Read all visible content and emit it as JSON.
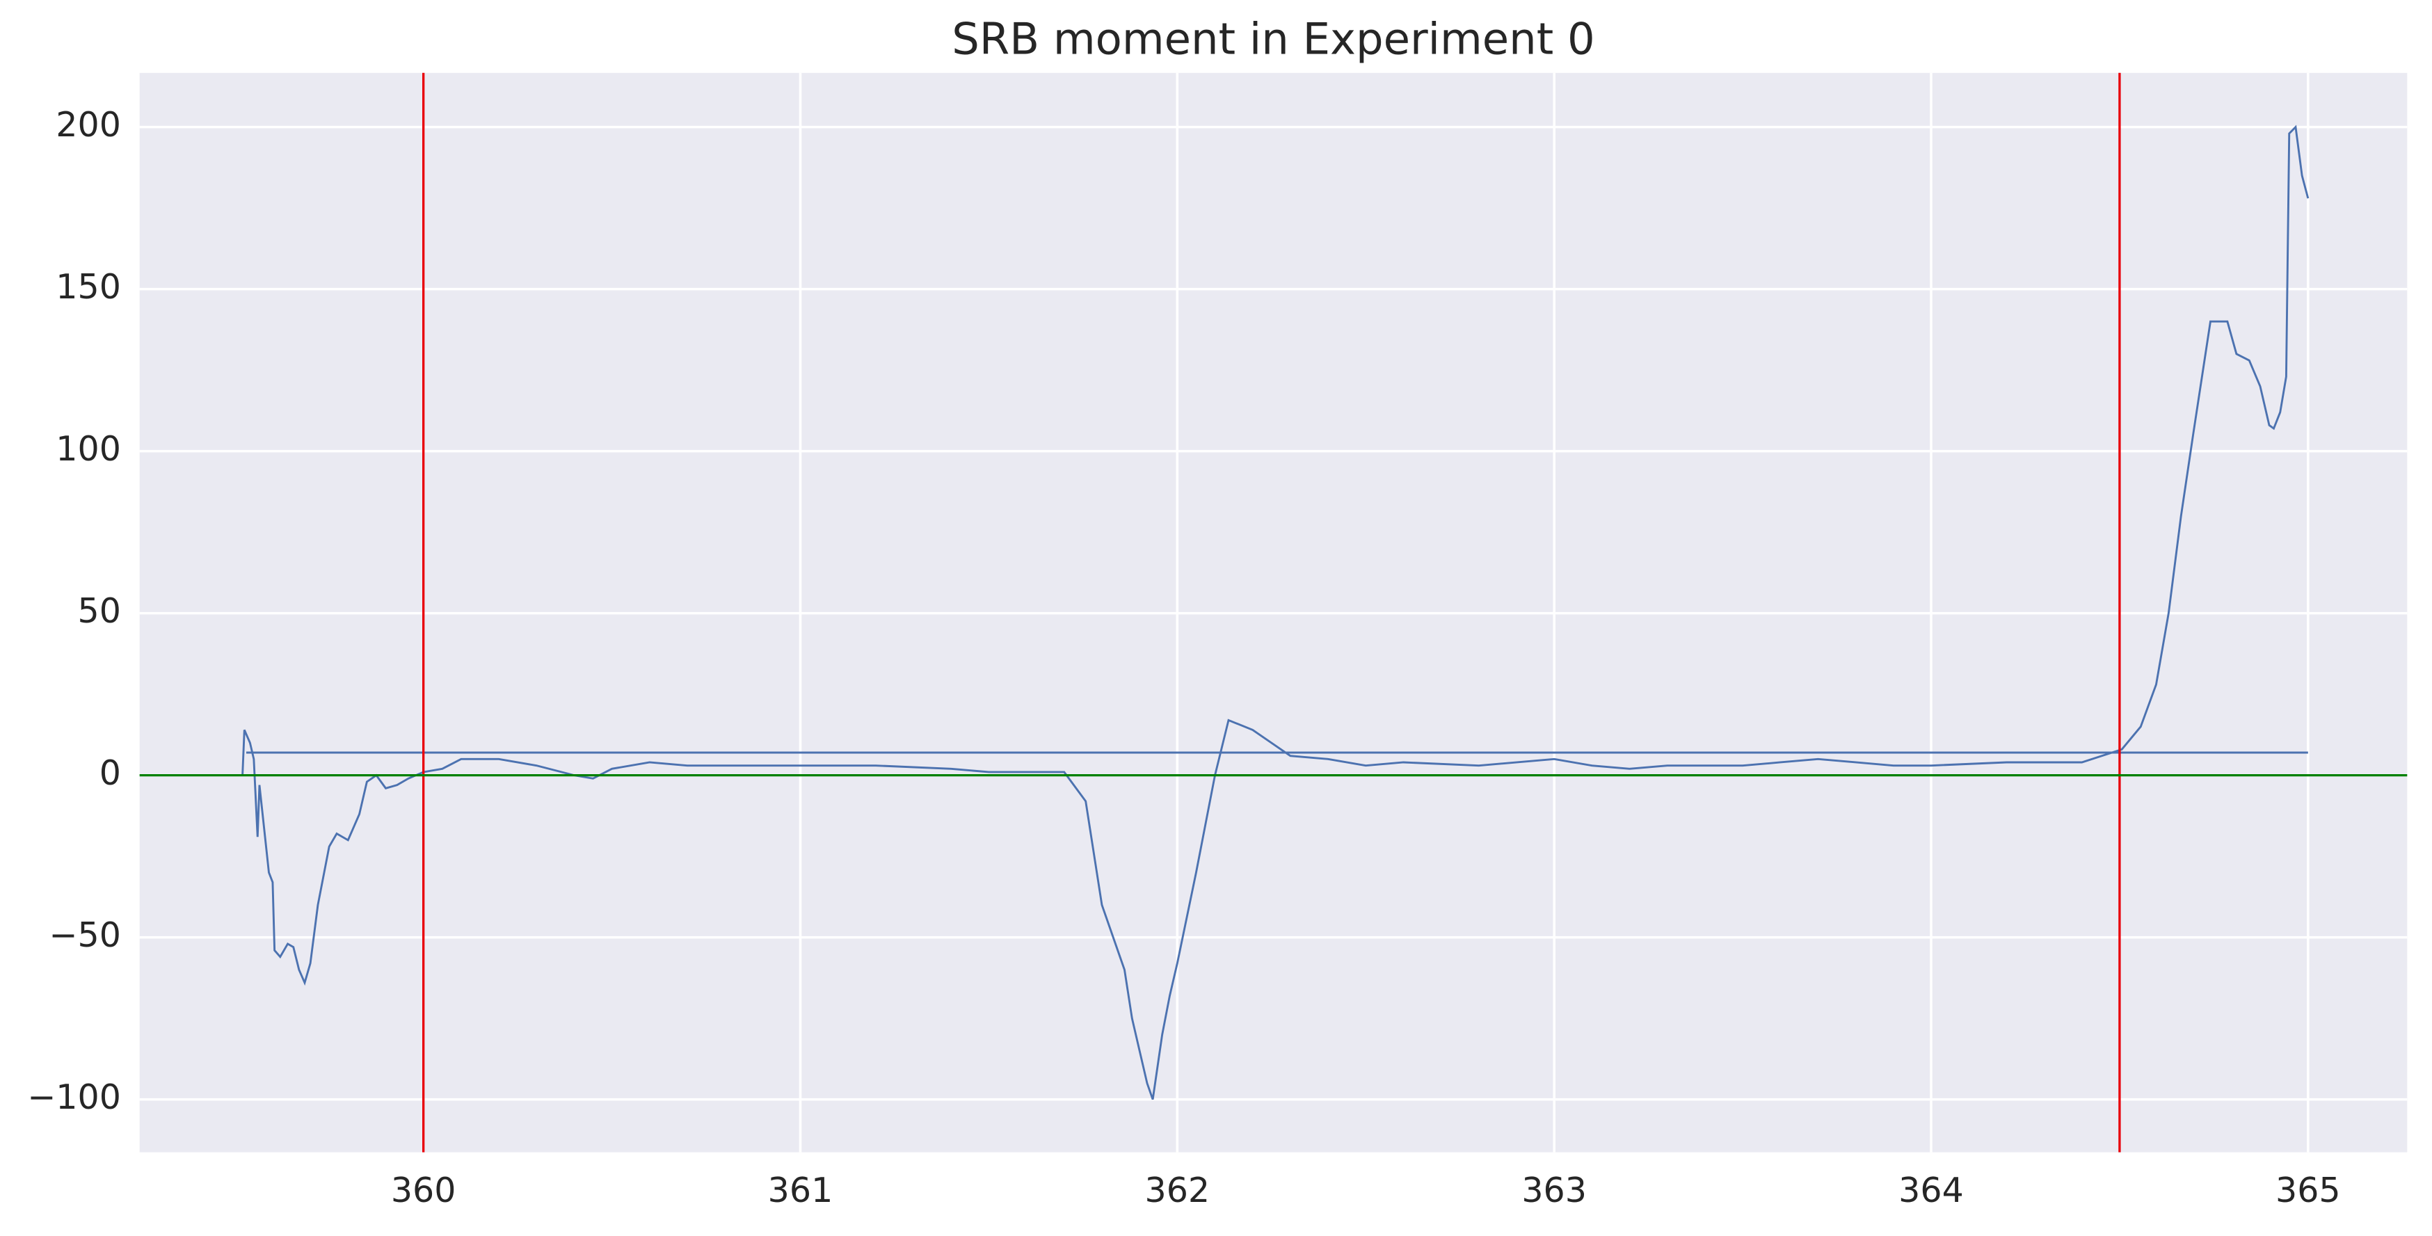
{
  "chart_data": {
    "type": "line",
    "title": "SRB moment in Experiment 0",
    "series": [
      {
        "color": "#4c72b0",
        "x": [
          359.52,
          359.525,
          359.54,
          359.55,
          359.56,
          359.565,
          359.59,
          359.6,
          359.605,
          359.62,
          359.64,
          359.655,
          359.67,
          359.685,
          359.7,
          359.72,
          359.75,
          359.77,
          359.8,
          359.83,
          359.85,
          359.875,
          359.9,
          359.93,
          359.96,
          360.0,
          360.05,
          360.1,
          360.2,
          360.3,
          360.4,
          360.45,
          360.5,
          360.6,
          360.7,
          360.8,
          360.9,
          361.0,
          361.2,
          361.4,
          361.5,
          361.6,
          361.7,
          361.757,
          361.8,
          361.83,
          361.86,
          361.88,
          361.92,
          361.935,
          361.96,
          361.98,
          362.0,
          362.05,
          362.1,
          362.136,
          362.2,
          362.25,
          362.3,
          362.4,
          362.5,
          362.6,
          362.8,
          363.0,
          363.1,
          363.2,
          363.3,
          363.5,
          363.6,
          363.7,
          363.8,
          363.9,
          364.0,
          364.2,
          364.4,
          364.506,
          364.556,
          364.597,
          364.63,
          364.663,
          364.695,
          364.741,
          364.786,
          364.81,
          364.844,
          364.873,
          364.897,
          364.909,
          364.926,
          364.942,
          364.95,
          364.967,
          364.984,
          365.0
        ],
        "values": [
          0,
          14,
          10,
          5,
          -19,
          -3,
          -30,
          -33,
          -54,
          -56,
          -52,
          -53,
          -60,
          -64,
          -58,
          -40,
          -22,
          -18,
          -20,
          -12,
          -2,
          0,
          -4,
          -3,
          -1,
          1,
          2,
          5,
          5,
          3,
          0,
          -1,
          2,
          4,
          3,
          3,
          3,
          3,
          3,
          2,
          1,
          1,
          1,
          -8,
          -40,
          -50,
          -60,
          -75,
          -95,
          -100,
          -80,
          -68,
          -58,
          -30,
          0,
          17,
          14,
          10,
          6,
          5,
          3,
          4,
          3,
          5,
          3,
          2,
          3,
          3,
          4,
          5,
          4,
          3,
          3,
          4,
          4,
          8,
          15,
          28,
          50,
          80,
          105,
          140,
          140,
          130,
          128,
          120,
          108,
          107,
          112,
          123,
          198,
          200,
          185,
          178
        ]
      },
      {
        "color": "#4c72b0",
        "x": [
          359.53,
          365.0
        ],
        "values": [
          7,
          7
        ]
      }
    ],
    "vlines": [
      360,
      364.5
    ],
    "vline_color": "#e8000b",
    "hline": 0,
    "hline_color": "#008000",
    "xlim": [
      359.247,
      365.263
    ],
    "ylim": [
      -116.3,
      216.7
    ],
    "xticks": [
      360,
      361,
      362,
      363,
      364,
      365
    ],
    "yticks": [
      {
        "value": -100,
        "label": "−100"
      },
      {
        "value": -50,
        "label": "−50"
      },
      0,
      50,
      100,
      150,
      200
    ],
    "grid": true,
    "background": "#eaeaf2"
  }
}
